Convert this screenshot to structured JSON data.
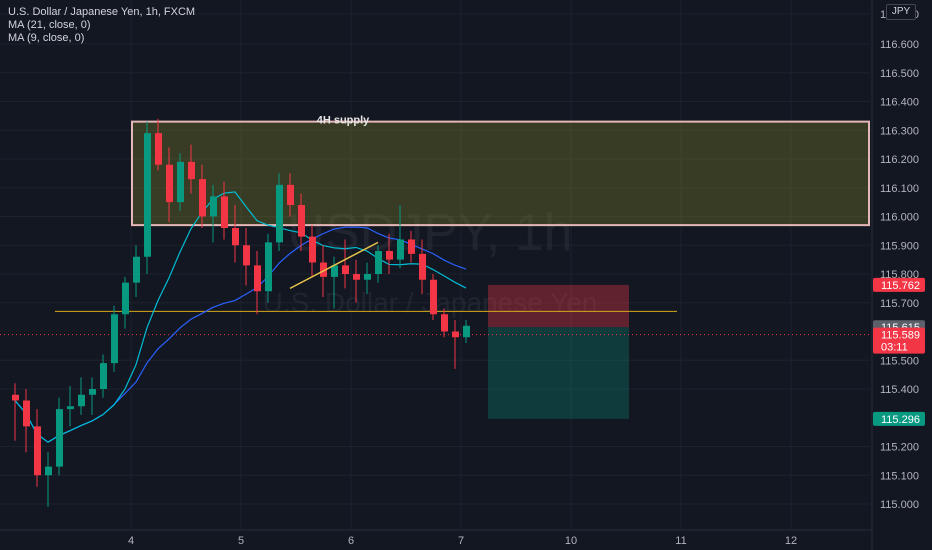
{
  "legend": {
    "symbol_line": "U.S. Dollar / Japanese Yen, 1h, FXCM",
    "ma21": "MA (21, close, 0)",
    "ma9": "MA (9, close, 0)"
  },
  "currency_badge": "JPY",
  "watermark": {
    "symbol": "USDJPY, 1h",
    "name": "U.S. Dollar / Japanese Yen"
  },
  "annotations": {
    "supply_label": "4H supply"
  },
  "price_labels": [
    {
      "text": "115.762",
      "value": 115.762,
      "color": "#f23645"
    },
    {
      "text": "115.615",
      "value": 115.615,
      "color": "#5d606b"
    },
    {
      "text": "115.589",
      "value": 115.589,
      "color": "#f23645",
      "sub": "03:11"
    },
    {
      "text": "115.296",
      "value": 115.296,
      "color": "#089981"
    }
  ],
  "chart_data": {
    "type": "candlestick",
    "title": "U.S. Dollar / Japanese Yen, 1h, FXCM",
    "y_ticks": [
      "117.000",
      "116.600",
      "116.500",
      "116.400",
      "116.300",
      "116.200",
      "116.100",
      "116.000",
      "115.900",
      "115.800",
      "115.700",
      "115.500",
      "115.400",
      "115.200",
      "115.100",
      "115.000"
    ],
    "x_ticks": [
      "4",
      "5",
      "6",
      "7",
      "10",
      "11",
      "12"
    ],
    "x_tick_index": [
      11,
      21,
      31,
      41,
      51,
      61,
      71
    ],
    "ylim": [
      114.98,
      117.02
    ],
    "series": [
      {
        "name": "MA (21, close, 0)",
        "color": "#2962ff"
      },
      {
        "name": "MA (9, close, 0)",
        "color": "#00bcd4"
      }
    ],
    "colors": {
      "up": "#089981",
      "down": "#f23645"
    },
    "candles": [
      {
        "o": 115.38,
        "h": 115.42,
        "l": 115.22,
        "c": 115.36
      },
      {
        "o": 115.36,
        "h": 115.4,
        "l": 115.18,
        "c": 115.27
      },
      {
        "o": 115.27,
        "h": 115.33,
        "l": 115.06,
        "c": 115.1
      },
      {
        "o": 115.1,
        "h": 115.18,
        "l": 114.99,
        "c": 115.13
      },
      {
        "o": 115.13,
        "h": 115.37,
        "l": 115.1,
        "c": 115.33
      },
      {
        "o": 115.33,
        "h": 115.41,
        "l": 115.27,
        "c": 115.34
      },
      {
        "o": 115.34,
        "h": 115.44,
        "l": 115.31,
        "c": 115.38
      },
      {
        "o": 115.38,
        "h": 115.44,
        "l": 115.31,
        "c": 115.4
      },
      {
        "o": 115.4,
        "h": 115.52,
        "l": 115.37,
        "c": 115.49
      },
      {
        "o": 115.49,
        "h": 115.69,
        "l": 115.46,
        "c": 115.66
      },
      {
        "o": 115.66,
        "h": 115.79,
        "l": 115.61,
        "c": 115.77
      },
      {
        "o": 115.77,
        "h": 115.9,
        "l": 115.72,
        "c": 115.86
      },
      {
        "o": 115.86,
        "h": 116.33,
        "l": 115.8,
        "c": 116.29
      },
      {
        "o": 116.29,
        "h": 116.34,
        "l": 116.16,
        "c": 116.18
      },
      {
        "o": 116.18,
        "h": 116.24,
        "l": 115.98,
        "c": 116.05
      },
      {
        "o": 116.05,
        "h": 116.22,
        "l": 116.02,
        "c": 116.19
      },
      {
        "o": 116.19,
        "h": 116.25,
        "l": 116.08,
        "c": 116.13
      },
      {
        "o": 116.13,
        "h": 116.18,
        "l": 115.96,
        "c": 116.0
      },
      {
        "o": 116.0,
        "h": 116.11,
        "l": 115.91,
        "c": 116.07
      },
      {
        "o": 116.07,
        "h": 116.12,
        "l": 115.92,
        "c": 115.96
      },
      {
        "o": 115.96,
        "h": 116.04,
        "l": 115.84,
        "c": 115.9
      },
      {
        "o": 115.9,
        "h": 115.96,
        "l": 115.76,
        "c": 115.83
      },
      {
        "o": 115.83,
        "h": 115.88,
        "l": 115.66,
        "c": 115.74
      },
      {
        "o": 115.74,
        "h": 115.94,
        "l": 115.7,
        "c": 115.91
      },
      {
        "o": 115.91,
        "h": 116.15,
        "l": 115.88,
        "c": 116.11
      },
      {
        "o": 116.11,
        "h": 116.15,
        "l": 116.0,
        "c": 116.04
      },
      {
        "o": 116.04,
        "h": 116.08,
        "l": 115.88,
        "c": 115.93
      },
      {
        "o": 115.93,
        "h": 115.97,
        "l": 115.79,
        "c": 115.84
      },
      {
        "o": 115.84,
        "h": 115.9,
        "l": 115.72,
        "c": 115.79
      },
      {
        "o": 115.79,
        "h": 115.86,
        "l": 115.68,
        "c": 115.83
      },
      {
        "o": 115.83,
        "h": 115.92,
        "l": 115.75,
        "c": 115.8
      },
      {
        "o": 115.8,
        "h": 115.85,
        "l": 115.7,
        "c": 115.78
      },
      {
        "o": 115.78,
        "h": 115.84,
        "l": 115.73,
        "c": 115.8
      },
      {
        "o": 115.8,
        "h": 115.9,
        "l": 115.77,
        "c": 115.88
      },
      {
        "o": 115.88,
        "h": 115.94,
        "l": 115.8,
        "c": 115.85
      },
      {
        "o": 115.85,
        "h": 116.04,
        "l": 115.82,
        "c": 115.92
      },
      {
        "o": 115.92,
        "h": 115.95,
        "l": 115.84,
        "c": 115.87
      },
      {
        "o": 115.87,
        "h": 115.92,
        "l": 115.73,
        "c": 115.78
      },
      {
        "o": 115.78,
        "h": 115.8,
        "l": 115.64,
        "c": 115.66
      },
      {
        "o": 115.66,
        "h": 115.68,
        "l": 115.58,
        "c": 115.6
      },
      {
        "o": 115.6,
        "h": 115.64,
        "l": 115.47,
        "c": 115.58
      },
      {
        "o": 115.58,
        "h": 115.64,
        "l": 115.56,
        "c": 115.62
      }
    ],
    "supply_zone": {
      "label": "4H supply",
      "from_index": 11,
      "y_top": 116.33,
      "y_bottom": 115.97
    },
    "horizontal_line": {
      "value": 115.67,
      "color": "#d4a81a"
    },
    "trendline": {
      "from": [
        25,
        115.75
      ],
      "to": [
        33,
        115.91
      ],
      "color": "#e8c547"
    },
    "position": {
      "entry": 115.615,
      "stop": 115.762,
      "target": 115.296,
      "from_index": 43,
      "to_index": 56
    },
    "last_price": 115.589
  }
}
